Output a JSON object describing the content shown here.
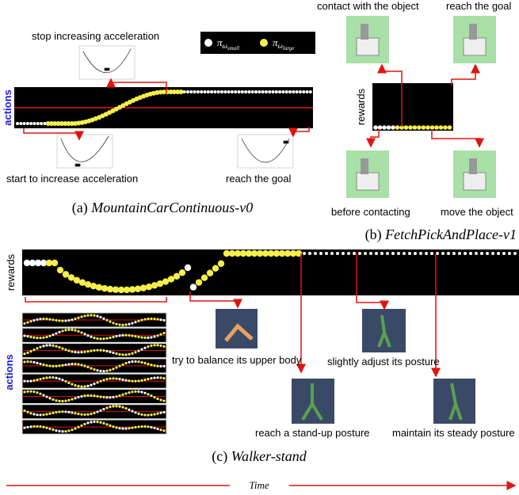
{
  "panel_a": {
    "top_label": "stop increasing acceleration",
    "axis_label": "actions",
    "bottom_left_label": "start to increase acceleration",
    "bottom_right_label": "reach the goal",
    "caption": {
      "label": "(a)",
      "name": "MountainCarContinuous-v0"
    },
    "legend": [
      {
        "symbol": "π",
        "sub": "ω",
        "subsub": "small"
      },
      {
        "symbol": "π",
        "sub": "ω",
        "subsub": "large"
      }
    ]
  },
  "panel_b": {
    "axis_label": "rewards",
    "top_left_label": "contact with the object",
    "top_right_label": "reach the goal",
    "bottom_left_label": "before contacting",
    "bottom_right_label": "move the object",
    "caption": {
      "label": "(b)",
      "name": "FetchPickAndPlace-v1"
    }
  },
  "panel_c": {
    "rewards_label": "rewards",
    "actions_label": "actions",
    "labels": [
      "try to balance its upper body",
      "slightly adjust its posture",
      "reach a stand-up posture",
      "maintain its steady posture"
    ],
    "caption": {
      "label": "(c)",
      "name": "Walker-stand"
    }
  },
  "time_label": "Time"
}
